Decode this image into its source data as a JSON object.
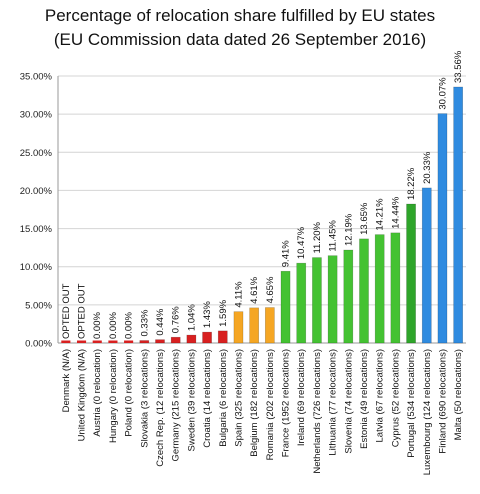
{
  "chart_data": {
    "type": "bar",
    "title": "Percentage of relocation share fulfilled by EU states",
    "subtitle": "(EU Commission data dated 26 September 2016)",
    "xlabel": "",
    "ylabel": "",
    "ylim": [
      0,
      35
    ],
    "yticks": [
      "0.00%",
      "5.00%",
      "10.00%",
      "15.00%",
      "20.00%",
      "25.00%",
      "30.00%",
      "35.00%"
    ],
    "grid": true,
    "categories": [
      "Denmark (N/A)",
      "United Kingdom (N/A)",
      "Austria (0 relocation)",
      "Hungary (0 relocation)",
      "Poland (0 relocation)",
      "Slovakia (3 relocations)",
      "Czech Rep. (12 relocations)",
      "Germany (215 relocations)",
      "Sweden (39 relocations)",
      "Croatia (14 relocations)",
      "Bulgaria (6 relocations)",
      "Spain (325 relocations)",
      "Belgium (182 relocations)",
      "Romania (202 relocations)",
      "France (1952 relocations)",
      "Ireland (69 relocations)",
      "Netherlands (726 relocations)",
      "Lithuania (77 relocations)",
      "Slovenia (74 relocations)",
      "Estonia (49 relocations)",
      "Latvia (67 relocations)",
      "Cyprus (52 relocations)",
      "Portugal (534 relocations)",
      "Luxembourg (124 relocations)",
      "Finland (690 relocations)",
      "Malta (50 relocations)"
    ],
    "values": [
      0,
      0,
      0,
      0,
      0,
      0.33,
      0.44,
      0.76,
      1.04,
      1.43,
      1.59,
      4.11,
      4.61,
      4.65,
      9.41,
      10.47,
      11.2,
      11.45,
      12.19,
      13.65,
      14.21,
      14.44,
      18.22,
      20.33,
      30.07,
      33.56
    ],
    "data_labels": [
      "OPTED OUT",
      "OPTED OUT",
      "0.00%",
      "0.00%",
      "0.00%",
      "0.33%",
      "0.44%",
      "0.76%",
      "1.04%",
      "1.43%",
      "1.59%",
      "4.11%",
      "4.61%",
      "4.65%",
      "9.41%",
      "10.47%",
      "11.20%",
      "11.45%",
      "12.19%",
      "13.65%",
      "14.21%",
      "14.44%",
      "18.22%",
      "20.33%",
      "30.07%",
      "33.56%"
    ],
    "colors": [
      "#d82020",
      "#d82020",
      "#d82020",
      "#d82020",
      "#d82020",
      "#d82020",
      "#d82020",
      "#d82020",
      "#d82020",
      "#d82020",
      "#d82020",
      "#f5a623",
      "#f5a623",
      "#f5a623",
      "#44c232",
      "#44c232",
      "#44c232",
      "#44c232",
      "#44c232",
      "#44c232",
      "#44c232",
      "#44c232",
      "#2ea52a",
      "#2f8be0",
      "#2f8be0",
      "#2f8be0"
    ]
  }
}
